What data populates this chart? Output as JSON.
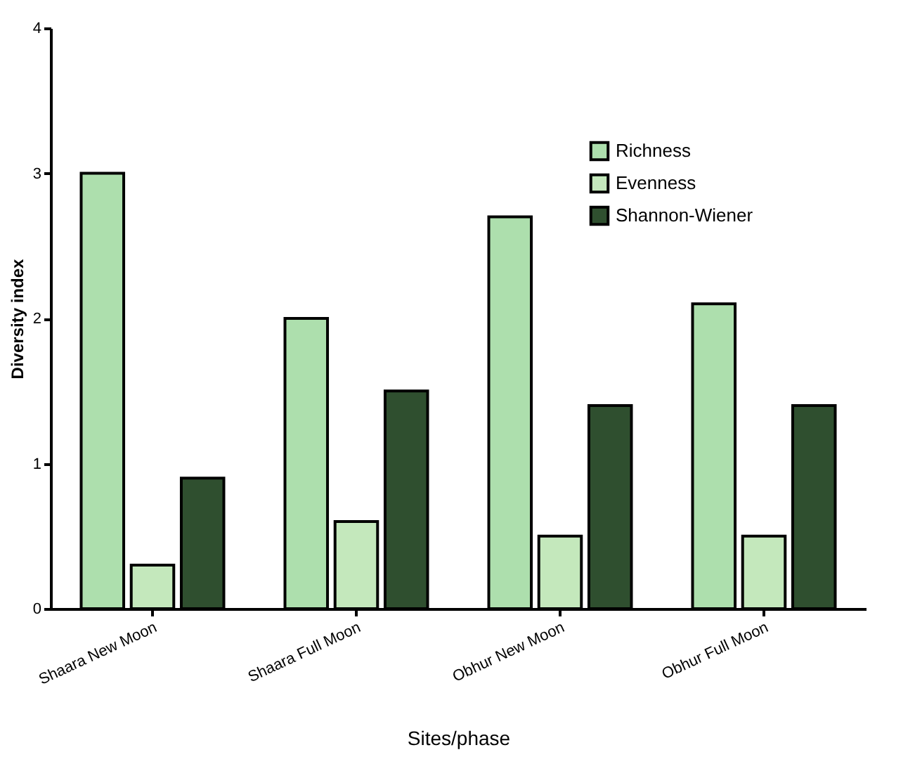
{
  "chart_data": {
    "type": "bar",
    "xlabel": "Sites/phase",
    "ylabel": "Diversity index",
    "categories": [
      "Shaara New Moon",
      "Shaara Full Moon",
      "Obhur New Moon",
      "Obhur Full Moon"
    ],
    "series": [
      {
        "name": "Richness",
        "color": "#addfad",
        "values": [
          3,
          2,
          2.7,
          2.1
        ]
      },
      {
        "name": "Evenness",
        "color": "#c4e8bc",
        "values": [
          0.3,
          0.6,
          0.5,
          0.5
        ]
      },
      {
        "name": "Shannon-Wiener",
        "color": "#2f4f2f",
        "values": [
          0.9,
          1.5,
          1.4,
          1.4
        ]
      }
    ],
    "ylim": [
      0,
      4
    ],
    "yticks": [
      0,
      1,
      2,
      3,
      4
    ],
    "grid": false,
    "legend": "top right"
  }
}
